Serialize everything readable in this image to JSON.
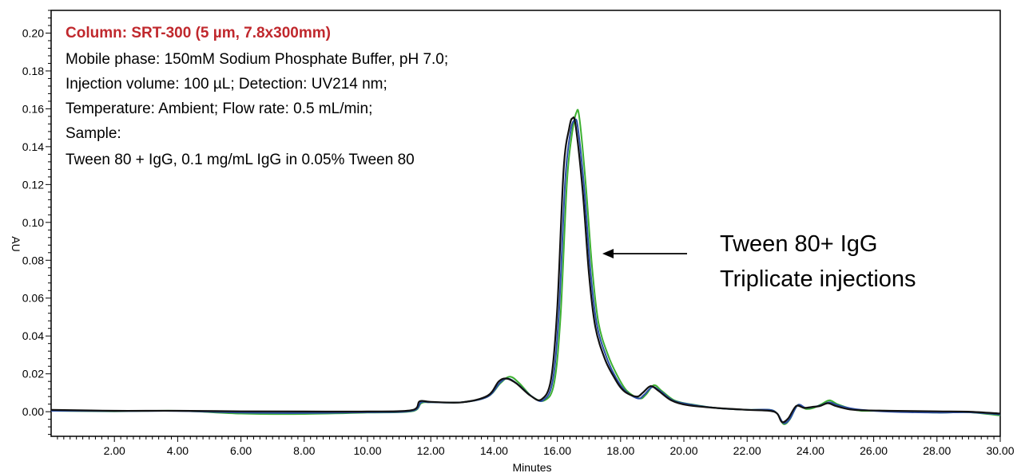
{
  "chart_data": {
    "type": "line",
    "xlabel": "Minutes",
    "ylabel": "AU",
    "xlim": [
      0,
      30
    ],
    "ylim": [
      -0.013,
      0.212
    ],
    "x_ticks": [
      "2.00",
      "4.00",
      "6.00",
      "8.00",
      "10.00",
      "12.00",
      "14.00",
      "16.00",
      "18.00",
      "20.00",
      "22.00",
      "24.00",
      "26.00",
      "28.00",
      "30.00"
    ],
    "y_ticks": [
      "0.00",
      "0.02",
      "0.04",
      "0.06",
      "0.08",
      "0.10",
      "0.12",
      "0.14",
      "0.16",
      "0.18",
      "0.20"
    ],
    "grid": false,
    "info_box": {
      "title": "Column: SRT-300 (5 µm, 7.8x300mm)",
      "lines": [
        "Mobile phase: 150mM Sodium Phosphate Buffer, pH 7.0;",
        "Injection volume: 100 µL; Detection: UV214 nm;",
        "Temperature: Ambient; Flow rate: 0.5 mL/min;",
        "Sample:",
        "Tween 80 + IgG, 0.1 mg/mL IgG in 0.05% Tween 80"
      ]
    },
    "annotation": {
      "lines": [
        "Tween 80+ IgG",
        "Triplicate injections"
      ],
      "arrow_points_to_x": 17.2,
      "arrow_points_to_y": 0.083
    },
    "series": [
      {
        "color": "#3cb030",
        "x": [
          0,
          2,
          4,
          6,
          8,
          10,
          11.4,
          11.7,
          12,
          13,
          13.8,
          14.2,
          14.5,
          14.8,
          15.2,
          15.6,
          15.9,
          16.1,
          16.3,
          16.45,
          16.6,
          16.7,
          16.9,
          17.1,
          17.3,
          17.6,
          17.9,
          18.2,
          18.6,
          18.8,
          19.05,
          19.3,
          19.7,
          20.2,
          21,
          22,
          22.7,
          22.95,
          23.15,
          23.35,
          23.6,
          23.85,
          24.1,
          24.35,
          24.6,
          24.85,
          25.2,
          25.6,
          26.5,
          28,
          29,
          30
        ],
        "y": [
          0.0005,
          0.0002,
          0.0005,
          -0.001,
          -0.0012,
          -0.0005,
          0.0002,
          0.0045,
          0.005,
          0.005,
          0.008,
          0.015,
          0.0185,
          0.015,
          0.008,
          0.006,
          0.015,
          0.05,
          0.12,
          0.145,
          0.158,
          0.155,
          0.12,
          0.076,
          0.047,
          0.03,
          0.019,
          0.011,
          0.007,
          0.009,
          0.014,
          0.011,
          0.006,
          0.004,
          0.002,
          0.001,
          0.001,
          -0.001,
          -0.0065,
          -0.004,
          0.0035,
          0.0015,
          0.002,
          0.004,
          0.006,
          0.004,
          0.002,
          0.0005,
          0.0005,
          -0.0005,
          -0.0003,
          -0.002
        ]
      },
      {
        "color": "#2b4ea8",
        "x": [
          0,
          2,
          4,
          6,
          8,
          10,
          11.4,
          11.7,
          12,
          13,
          13.8,
          14.2,
          14.45,
          14.75,
          15.2,
          15.55,
          15.85,
          16.05,
          16.25,
          16.42,
          16.55,
          16.65,
          16.85,
          17.05,
          17.25,
          17.55,
          17.85,
          18.15,
          18.55,
          18.75,
          19,
          19.25,
          19.65,
          20.15,
          21,
          22,
          22.7,
          22.95,
          23.15,
          23.35,
          23.6,
          23.85,
          24.1,
          24.35,
          24.6,
          24.85,
          25.2,
          25.6,
          26.5,
          28,
          29,
          30
        ],
        "y": [
          0.0005,
          0.0003,
          0.0004,
          -0.0005,
          -0.0007,
          -0.0003,
          0.0004,
          0.005,
          0.005,
          0.005,
          0.008,
          0.0155,
          0.0175,
          0.0145,
          0.008,
          0.006,
          0.016,
          0.052,
          0.122,
          0.148,
          0.154,
          0.15,
          0.118,
          0.074,
          0.046,
          0.029,
          0.018,
          0.011,
          0.007,
          0.009,
          0.013,
          0.011,
          0.006,
          0.004,
          0.002,
          0.001,
          0.001,
          -0.001,
          -0.006,
          -0.0038,
          0.0035,
          0.002,
          0.0025,
          0.0035,
          0.005,
          0.0035,
          0.002,
          0.001,
          0,
          -0.0005,
          -0.0003,
          -0.0015
        ]
      },
      {
        "color": "#111111",
        "x": [
          0,
          2,
          4,
          6,
          8,
          10,
          11.4,
          11.65,
          12,
          13,
          13.8,
          14.15,
          14.4,
          14.7,
          15.15,
          15.5,
          15.8,
          16,
          16.2,
          16.38,
          16.48,
          16.58,
          16.8,
          17,
          17.2,
          17.5,
          17.8,
          18.1,
          18.5,
          18.7,
          18.95,
          19.2,
          19.6,
          20.1,
          21,
          22,
          22.7,
          22.95,
          23.1,
          23.3,
          23.55,
          23.8,
          24.05,
          24.3,
          24.55,
          24.8,
          25.15,
          25.55,
          26.5,
          28,
          29,
          30
        ],
        "y": [
          0.001,
          0.0005,
          0.0005,
          0.0002,
          0.0001,
          0.0001,
          0.0008,
          0.0055,
          0.0052,
          0.005,
          0.0085,
          0.016,
          0.0175,
          0.015,
          0.0085,
          0.0065,
          0.017,
          0.055,
          0.128,
          0.15,
          0.155,
          0.151,
          0.117,
          0.073,
          0.045,
          0.028,
          0.018,
          0.011,
          0.008,
          0.01,
          0.0135,
          0.011,
          0.006,
          0.0035,
          0.002,
          0.001,
          0.0005,
          -0.001,
          -0.0055,
          -0.0035,
          0.003,
          0.002,
          0.0025,
          0.003,
          0.0045,
          0.003,
          0.0015,
          0.0008,
          0.0005,
          0.0002,
          0,
          -0.001
        ]
      }
    ]
  }
}
